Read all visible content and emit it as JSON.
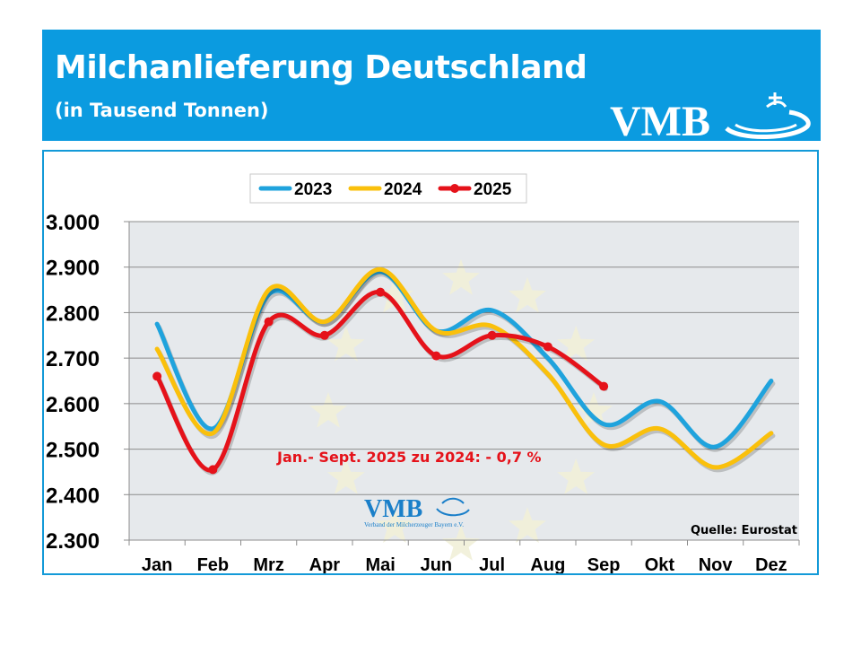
{
  "header": {
    "title": "Milchanlieferung Deutschland",
    "subtitle": "(in Tausend Tonnen)",
    "logo_text": "VMB",
    "bg_color": "#0b9be0"
  },
  "chart_data": {
    "type": "line",
    "categories": [
      "Jan",
      "Feb",
      "Mrz",
      "Apr",
      "Mai",
      "Jun",
      "Jul",
      "Aug",
      "Sep",
      "Okt",
      "Nov",
      "Dez"
    ],
    "series": [
      {
        "name": "2023",
        "color": "#1fa3dd",
        "markers": false,
        "values": [
          2775,
          2545,
          2840,
          2780,
          2890,
          2760,
          2805,
          2700,
          2555,
          2605,
          2505,
          2650
        ]
      },
      {
        "name": "2024",
        "color": "#fac00b",
        "markers": false,
        "values": [
          2720,
          2535,
          2850,
          2780,
          2895,
          2760,
          2770,
          2665,
          2510,
          2545,
          2460,
          2535
        ]
      },
      {
        "name": "2025",
        "color": "#e5121a",
        "markers": true,
        "values": [
          2660,
          2455,
          2780,
          2750,
          2845,
          2705,
          2750,
          2725,
          2638,
          null,
          null,
          null
        ]
      }
    ],
    "ylim": [
      2300,
      3000
    ],
    "yticks": [
      3000,
      2900,
      2800,
      2700,
      2600,
      2500,
      2400,
      2300
    ],
    "ytick_labels": [
      "3.000",
      "2.900",
      "2.800",
      "2.700",
      "2.600",
      "2.500",
      "2.400",
      "2.300"
    ],
    "grid": true,
    "legend_position": "top",
    "annotation": "Jan.- Sept. 2025 zu 2024: - 0,7 %",
    "source": "Quelle: Eurostat",
    "watermark": {
      "logo": "VMB",
      "caption": "Verband der Milcherzeuger Bayern e.V."
    },
    "plot_bg": "#e6e9ec"
  }
}
